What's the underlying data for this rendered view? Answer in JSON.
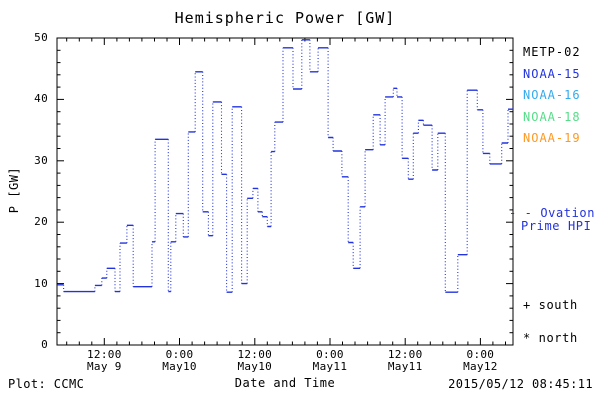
{
  "title": "Hemispheric Power [GW]",
  "footer": {
    "plot_source": "Plot: CCMC",
    "timestamp": "2015/05/12 08:45:11"
  },
  "legend": {
    "satellites": [
      {
        "label": "METP-02",
        "color": "#000000"
      },
      {
        "label": "NOAA-15",
        "color": "#2233dd"
      },
      {
        "label": "NOAA-16",
        "color": "#33aaee"
      },
      {
        "label": "NOAA-18",
        "color": "#55dd88"
      },
      {
        "label": "NOAA-19",
        "color": "#ff9922"
      }
    ],
    "ovation": {
      "sample_dashes": "- -",
      "line1": "Ovation",
      "line2": "Prime HPI",
      "color": "#2233dd"
    },
    "markers": [
      {
        "symbol": "+",
        "label": "south"
      },
      {
        "symbol": "*",
        "label": "north"
      }
    ]
  },
  "chart_data": {
    "type": "line",
    "subtype": "stepped-dotted",
    "title": "Hemispheric Power [GW]",
    "xlabel": "Date and Time",
    "ylabel": "P [GW]",
    "ylim": [
      0,
      50
    ],
    "y_ticks": [
      0,
      10,
      20,
      30,
      40,
      50
    ],
    "y_minor_step": 2,
    "x_minor_step_hours": 2,
    "x_unit": "hours since 2015-05-09 00:00 UT",
    "t_range": [
      4.45,
      77.2
    ],
    "grid": false,
    "x_major_ticks": [
      {
        "t": 12,
        "time": "12:00",
        "date": "May 9"
      },
      {
        "t": 24,
        "time": "0:00",
        "date": "May10"
      },
      {
        "t": 36,
        "time": "12:00",
        "date": "May10"
      },
      {
        "t": 48,
        "time": "0:00",
        "date": "May11"
      },
      {
        "t": 60,
        "time": "12:00",
        "date": "May11"
      },
      {
        "t": 72,
        "time": "0:00",
        "date": "May12"
      }
    ],
    "series": [
      {
        "name": "Ovation Prime HPI",
        "color": "#2233dd",
        "t_end": 77.2,
        "steps": [
          [
            4.5,
            9.8
          ],
          [
            5.5,
            8.7
          ],
          [
            10.5,
            9.7
          ],
          [
            11.6,
            10.9
          ],
          [
            12.4,
            12.5
          ],
          [
            13.7,
            8.7
          ],
          [
            14.5,
            16.6
          ],
          [
            15.6,
            19.5
          ],
          [
            16.6,
            9.5
          ],
          [
            19.6,
            16.8
          ],
          [
            20.1,
            33.5
          ],
          [
            22.2,
            8.7
          ],
          [
            22.6,
            16.8
          ],
          [
            23.4,
            21.4
          ],
          [
            24.6,
            17.6
          ],
          [
            25.4,
            34.7
          ],
          [
            26.5,
            44.5
          ],
          [
            27.7,
            21.7
          ],
          [
            28.6,
            17.8
          ],
          [
            29.3,
            39.6
          ],
          [
            30.7,
            27.8
          ],
          [
            31.5,
            8.6
          ],
          [
            32.4,
            38.8
          ],
          [
            33.9,
            10.0
          ],
          [
            34.8,
            23.9
          ],
          [
            35.7,
            25.5
          ],
          [
            36.5,
            21.7
          ],
          [
            37.2,
            20.9
          ],
          [
            38.0,
            19.3
          ],
          [
            38.6,
            31.5
          ],
          [
            39.2,
            36.3
          ],
          [
            40.5,
            48.4
          ],
          [
            42.1,
            41.7
          ],
          [
            43.5,
            49.7
          ],
          [
            44.8,
            44.5
          ],
          [
            46.1,
            48.4
          ],
          [
            47.7,
            33.8
          ],
          [
            48.5,
            31.6
          ],
          [
            49.9,
            27.4
          ],
          [
            50.9,
            16.7
          ],
          [
            51.7,
            12.5
          ],
          [
            52.8,
            22.5
          ],
          [
            53.6,
            31.8
          ],
          [
            54.9,
            37.5
          ],
          [
            56.0,
            32.6
          ],
          [
            56.8,
            40.4
          ],
          [
            58.1,
            41.8
          ],
          [
            58.7,
            40.4
          ],
          [
            59.5,
            30.4
          ],
          [
            60.5,
            27.0
          ],
          [
            61.3,
            34.5
          ],
          [
            62.1,
            36.6
          ],
          [
            62.9,
            35.8
          ],
          [
            64.3,
            28.5
          ],
          [
            65.2,
            34.5
          ],
          [
            66.4,
            8.6
          ],
          [
            68.4,
            14.7
          ],
          [
            69.9,
            41.5
          ],
          [
            71.5,
            38.3
          ],
          [
            72.4,
            31.2
          ],
          [
            73.5,
            29.5
          ],
          [
            75.4,
            32.9
          ],
          [
            76.4,
            38.4
          ]
        ]
      }
    ]
  }
}
